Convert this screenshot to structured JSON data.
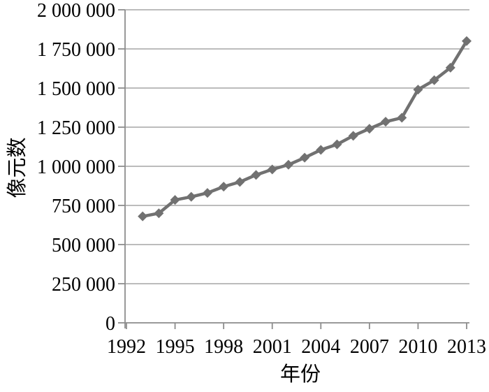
{
  "chart_data": {
    "type": "line",
    "title": "",
    "xlabel": "年份",
    "ylabel": "像元数",
    "x": [
      1993,
      1994,
      1995,
      1996,
      1997,
      1998,
      1999,
      2000,
      2001,
      2002,
      2003,
      2004,
      2005,
      2006,
      2007,
      2008,
      2009,
      2010,
      2011,
      2012,
      2013
    ],
    "values": [
      680000,
      700000,
      785000,
      805000,
      830000,
      870000,
      900000,
      945000,
      980000,
      1010000,
      1055000,
      1105000,
      1140000,
      1195000,
      1240000,
      1285000,
      1310000,
      1490000,
      1550000,
      1630000,
      1800000
    ],
    "xlim": [
      1992,
      2013.2
    ],
    "ylim": [
      0,
      2000000
    ],
    "x_ticks": [
      1992,
      1995,
      1998,
      2001,
      2004,
      2007,
      2010,
      2013
    ],
    "x_tick_labels": [
      "1992",
      "1995",
      "1998",
      "2001",
      "2004",
      "2007",
      "2010",
      "2013"
    ],
    "y_ticks": [
      0,
      250000,
      500000,
      750000,
      1000000,
      1250000,
      1500000,
      1750000,
      2000000
    ],
    "y_tick_labels": [
      "0",
      "250 000",
      "500 000",
      "750 000",
      "1 000 000",
      "1 250 000",
      "1 500 000",
      "1 750 000",
      "2 000 000"
    ],
    "grid": "horizontal-only",
    "legend": "none",
    "marker": "diamond",
    "colors": {
      "series": "#717171",
      "gridline": "#a6a6a6",
      "axis": "#8c8c8c",
      "text": "#000000",
      "background": "#ffffff"
    }
  }
}
